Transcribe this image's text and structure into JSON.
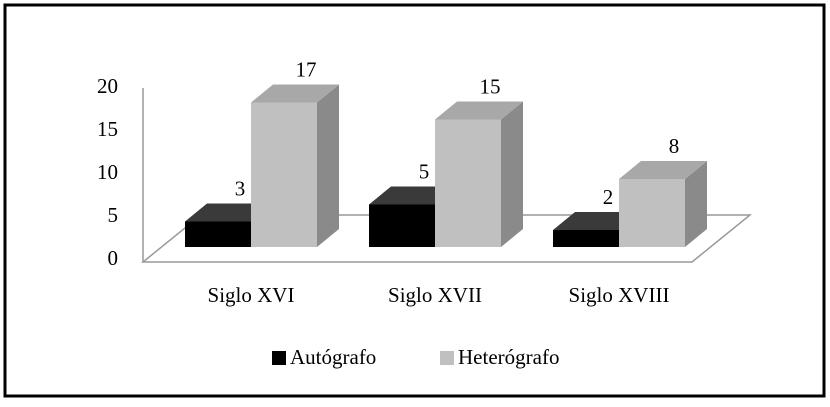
{
  "chart_data": {
    "type": "bar3d",
    "categories": [
      "Siglo XVI",
      "Siglo XVII",
      "Siglo XVIII"
    ],
    "series": [
      {
        "name": "Autógrafo",
        "color": "#000000",
        "values": [
          3,
          5,
          2
        ]
      },
      {
        "name": "Heterógrafo",
        "color": "#c0c0c0",
        "values": [
          17,
          15,
          8
        ]
      }
    ],
    "ylim": [
      0,
      20
    ],
    "yticks": [
      0,
      5,
      10,
      15,
      20
    ],
    "legend": "bottom"
  }
}
